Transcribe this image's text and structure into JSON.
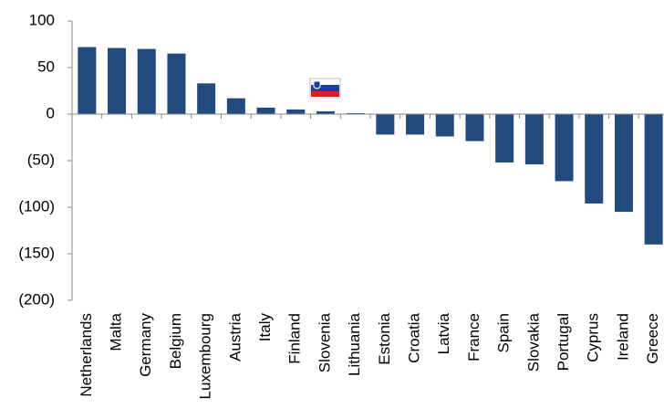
{
  "chart_data": {
    "type": "bar",
    "categories": [
      "Netherlands",
      "Malta",
      "Germany",
      "Belgium",
      "Luxembourg",
      "Austria",
      "Italy",
      "Finland",
      "Slovenia",
      "Lithuania",
      "Estonia",
      "Croatia",
      "Latvia",
      "France",
      "Spain",
      "Slovakia",
      "Portugal",
      "Cyprus",
      "Ireland",
      "Greece"
    ],
    "values": [
      72,
      71,
      70,
      65,
      33,
      17,
      7,
      5,
      3,
      1,
      -22,
      -22,
      -24,
      -29,
      -52,
      -54,
      -72,
      -96,
      -105,
      -140
    ],
    "color": "#234a7c",
    "ylim": [
      -200,
      100
    ],
    "yticks": [
      {
        "value": -200,
        "label": "(200)"
      },
      {
        "value": -150,
        "label": "(150)"
      },
      {
        "value": -100,
        "label": "(100)"
      },
      {
        "value": -50,
        "label": "(50)"
      },
      0,
      50,
      100
    ],
    "grid": false
  }
}
